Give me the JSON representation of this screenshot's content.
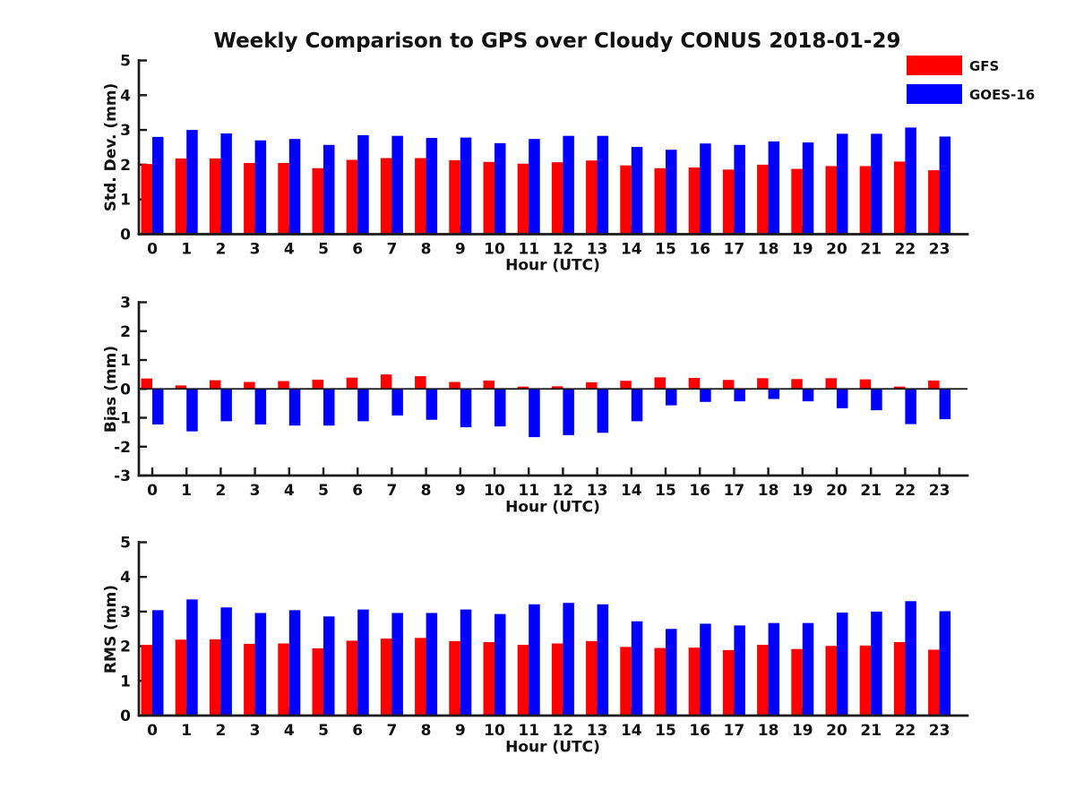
{
  "title": "Weekly Comparison to GPS over Cloudy CONUS 2018-01-29",
  "legend": {
    "position": "top-right",
    "items": [
      {
        "label": "GFS",
        "color": "#fe0000"
      },
      {
        "label": "GOES-16",
        "color": "#0000fe"
      }
    ]
  },
  "chart_data": [
    {
      "type": "bar",
      "title": "",
      "ylabel": "Std. Dev. (mm)",
      "xlabel": "Hour (UTC)",
      "categories": [
        "0",
        "1",
        "2",
        "3",
        "4",
        "5",
        "6",
        "7",
        "8",
        "9",
        "10",
        "11",
        "12",
        "13",
        "14",
        "15",
        "16",
        "17",
        "18",
        "19",
        "20",
        "21",
        "22",
        "23"
      ],
      "ylim": [
        0,
        5
      ],
      "yticks": [
        "0",
        "1",
        "2",
        "3",
        "4",
        "5"
      ],
      "grid": false,
      "series": [
        {
          "name": "GFS",
          "color": "#fe0000",
          "values": [
            2.02,
            2.18,
            2.18,
            2.05,
            2.05,
            1.9,
            2.14,
            2.19,
            2.19,
            2.13,
            2.08,
            2.03,
            2.07,
            2.12,
            1.98,
            1.9,
            1.92,
            1.86,
            2.0,
            1.88,
            1.96,
            1.96,
            2.09,
            1.84
          ]
        },
        {
          "name": "GOES-16",
          "color": "#0000fe",
          "values": [
            2.8,
            3.0,
            2.9,
            2.7,
            2.74,
            2.57,
            2.85,
            2.83,
            2.77,
            2.78,
            2.62,
            2.74,
            2.83,
            2.83,
            2.51,
            2.43,
            2.61,
            2.57,
            2.67,
            2.64,
            2.89,
            2.89,
            3.07,
            2.81
          ]
        }
      ]
    },
    {
      "type": "bar",
      "title": "",
      "ylabel": "Bias (mm)",
      "xlabel": "Hour (UTC)",
      "categories": [
        "0",
        "1",
        "2",
        "3",
        "4",
        "5",
        "6",
        "7",
        "8",
        "9",
        "10",
        "11",
        "12",
        "13",
        "14",
        "15",
        "16",
        "17",
        "18",
        "19",
        "20",
        "21",
        "22",
        "23"
      ],
      "ylim": [
        -3,
        3
      ],
      "yticks": [
        "-3",
        "-2",
        "-1",
        "0",
        "1",
        "2",
        "3"
      ],
      "zero_line": true,
      "grid": false,
      "series": [
        {
          "name": "GFS",
          "color": "#fe0000",
          "values": [
            0.36,
            0.12,
            0.3,
            0.24,
            0.27,
            0.32,
            0.39,
            0.5,
            0.44,
            0.24,
            0.29,
            0.08,
            0.09,
            0.23,
            0.28,
            0.4,
            0.38,
            0.31,
            0.37,
            0.34,
            0.37,
            0.33,
            0.08,
            0.29
          ]
        },
        {
          "name": "GOES-16",
          "color": "#0000fe",
          "values": [
            -1.23,
            -1.47,
            -1.12,
            -1.23,
            -1.27,
            -1.27,
            -1.12,
            -0.92,
            -1.07,
            -1.33,
            -1.3,
            -1.67,
            -1.6,
            -1.52,
            -1.12,
            -0.57,
            -0.45,
            -0.43,
            -0.35,
            -0.43,
            -0.67,
            -0.74,
            -1.22,
            -1.05
          ]
        }
      ]
    },
    {
      "type": "bar",
      "title": "",
      "ylabel": "RMS (mm)",
      "xlabel": "Hour (UTC)",
      "categories": [
        "0",
        "1",
        "2",
        "3",
        "4",
        "5",
        "6",
        "7",
        "8",
        "9",
        "10",
        "11",
        "12",
        "13",
        "14",
        "15",
        "16",
        "17",
        "18",
        "19",
        "20",
        "21",
        "22",
        "23"
      ],
      "ylim": [
        0,
        5
      ],
      "yticks": [
        "0",
        "1",
        "2",
        "3",
        "4",
        "5"
      ],
      "grid": false,
      "series": [
        {
          "name": "GFS",
          "color": "#fe0000",
          "values": [
            2.04,
            2.19,
            2.2,
            2.07,
            2.08,
            1.94,
            2.16,
            2.22,
            2.24,
            2.15,
            2.12,
            2.04,
            2.08,
            2.15,
            1.98,
            1.95,
            1.96,
            1.89,
            2.04,
            1.92,
            2.01,
            2.02,
            2.12,
            1.9
          ]
        },
        {
          "name": "GOES-16",
          "color": "#0000fe",
          "values": [
            3.04,
            3.35,
            3.12,
            2.96,
            3.04,
            2.86,
            3.06,
            2.96,
            2.96,
            3.06,
            2.93,
            3.21,
            3.25,
            3.21,
            2.72,
            2.5,
            2.65,
            2.6,
            2.67,
            2.67,
            2.97,
            3.0,
            3.3,
            3.01
          ]
        }
      ]
    }
  ]
}
